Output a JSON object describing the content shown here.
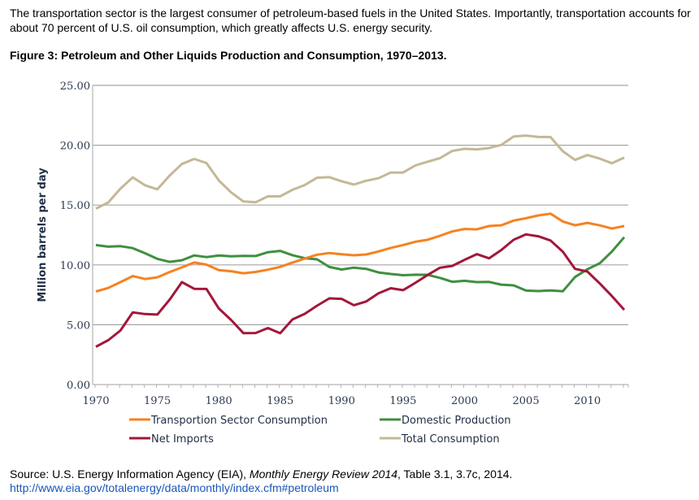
{
  "intro_text": "The transportation sector is the largest consumer of petroleum-based fuels in the United States. Importantly, transportation accounts for about 70 percent of U.S. oil consumption, which greatly affects U.S. energy security.",
  "figure_title": "Figure 3: Petroleum and Other Liquids Production and Consumption, 1970–2013.",
  "source": {
    "prefix": "Source: U.S. Energy Information Agency (EIA), ",
    "italic": "Monthly Energy Review 2014",
    "suffix": ", Table 3.1, 3.7c, 2014.",
    "link": "http://www.eia.gov/totalenergy/data/monthly/index.cfm#petroleum"
  },
  "chart_data": {
    "type": "line",
    "title": "Figure 3: Petroleum and Other Liquids Production and Consumption, 1970–2013.",
    "xlabel": "",
    "ylabel": "Million barrels per day",
    "ylim": [
      0,
      25
    ],
    "xlim": [
      1970,
      2013
    ],
    "yticks": [
      "0.00",
      "5.00",
      "10.00",
      "15.00",
      "20.00",
      "25.00"
    ],
    "xticks": [
      "1970",
      "1975",
      "1980",
      "1985",
      "1990",
      "1995",
      "2000",
      "2005",
      "2010"
    ],
    "grid": "horizontal",
    "legend_position": "bottom",
    "x": [
      1970,
      1971,
      1972,
      1973,
      1974,
      1975,
      1976,
      1977,
      1978,
      1979,
      1980,
      1981,
      1982,
      1983,
      1984,
      1985,
      1986,
      1987,
      1988,
      1989,
      1990,
      1991,
      1992,
      1993,
      1994,
      1995,
      1996,
      1997,
      1998,
      1999,
      2000,
      2001,
      2002,
      2003,
      2004,
      2005,
      2006,
      2007,
      2008,
      2009,
      2010,
      2011,
      2012,
      2013
    ],
    "series": [
      {
        "name": "Transportion Sector Consumption",
        "color": "#f58220",
        "values": [
          7.78,
          8.07,
          8.56,
          9.06,
          8.82,
          8.96,
          9.4,
          9.79,
          10.2,
          10.02,
          9.56,
          9.47,
          9.3,
          9.41,
          9.6,
          9.83,
          10.2,
          10.52,
          10.85,
          10.99,
          10.89,
          10.8,
          10.87,
          11.12,
          11.42,
          11.66,
          11.93,
          12.1,
          12.43,
          12.79,
          13.0,
          12.97,
          13.25,
          13.31,
          13.7,
          13.9,
          14.13,
          14.28,
          13.63,
          13.31,
          13.51,
          13.3,
          13.04,
          13.25
        ]
      },
      {
        "name": "Domestic Production",
        "color": "#3f8f3f",
        "values": [
          11.66,
          11.52,
          11.56,
          11.4,
          10.97,
          10.5,
          10.25,
          10.39,
          10.79,
          10.65,
          10.78,
          10.71,
          10.75,
          10.74,
          11.06,
          11.17,
          10.81,
          10.56,
          10.46,
          9.82,
          9.61,
          9.77,
          9.67,
          9.37,
          9.24,
          9.14,
          9.18,
          9.17,
          8.91,
          8.59,
          8.67,
          8.56,
          8.57,
          8.35,
          8.29,
          7.85,
          7.81,
          7.86,
          7.79,
          8.99,
          9.63,
          10.13,
          11.12,
          12.31
        ]
      },
      {
        "name": "Net Imports",
        "color": "#a3173a",
        "values": [
          3.16,
          3.7,
          4.52,
          6.03,
          5.89,
          5.85,
          7.09,
          8.56,
          8.0,
          7.99,
          6.36,
          5.4,
          4.3,
          4.31,
          4.72,
          4.29,
          5.44,
          5.91,
          6.59,
          7.2,
          7.16,
          6.63,
          6.94,
          7.62,
          8.05,
          7.89,
          8.5,
          9.16,
          9.76,
          9.91,
          10.42,
          10.9,
          10.55,
          11.24,
          12.1,
          12.55,
          12.39,
          12.04,
          11.11,
          9.67,
          9.44,
          8.45,
          7.39,
          6.24
        ]
      },
      {
        "name": "Total Consumption",
        "color": "#c4b896",
        "values": [
          14.7,
          15.21,
          16.37,
          17.31,
          16.65,
          16.32,
          17.46,
          18.43,
          18.85,
          18.51,
          17.06,
          16.06,
          15.3,
          15.23,
          15.73,
          15.73,
          16.28,
          16.67,
          17.28,
          17.33,
          16.99,
          16.71,
          17.03,
          17.24,
          17.72,
          17.72,
          18.31,
          18.62,
          18.92,
          19.52,
          19.7,
          19.65,
          19.76,
          20.03,
          20.73,
          20.8,
          20.69,
          20.68,
          19.5,
          18.77,
          19.18,
          18.88,
          18.49,
          18.96
        ]
      }
    ]
  }
}
